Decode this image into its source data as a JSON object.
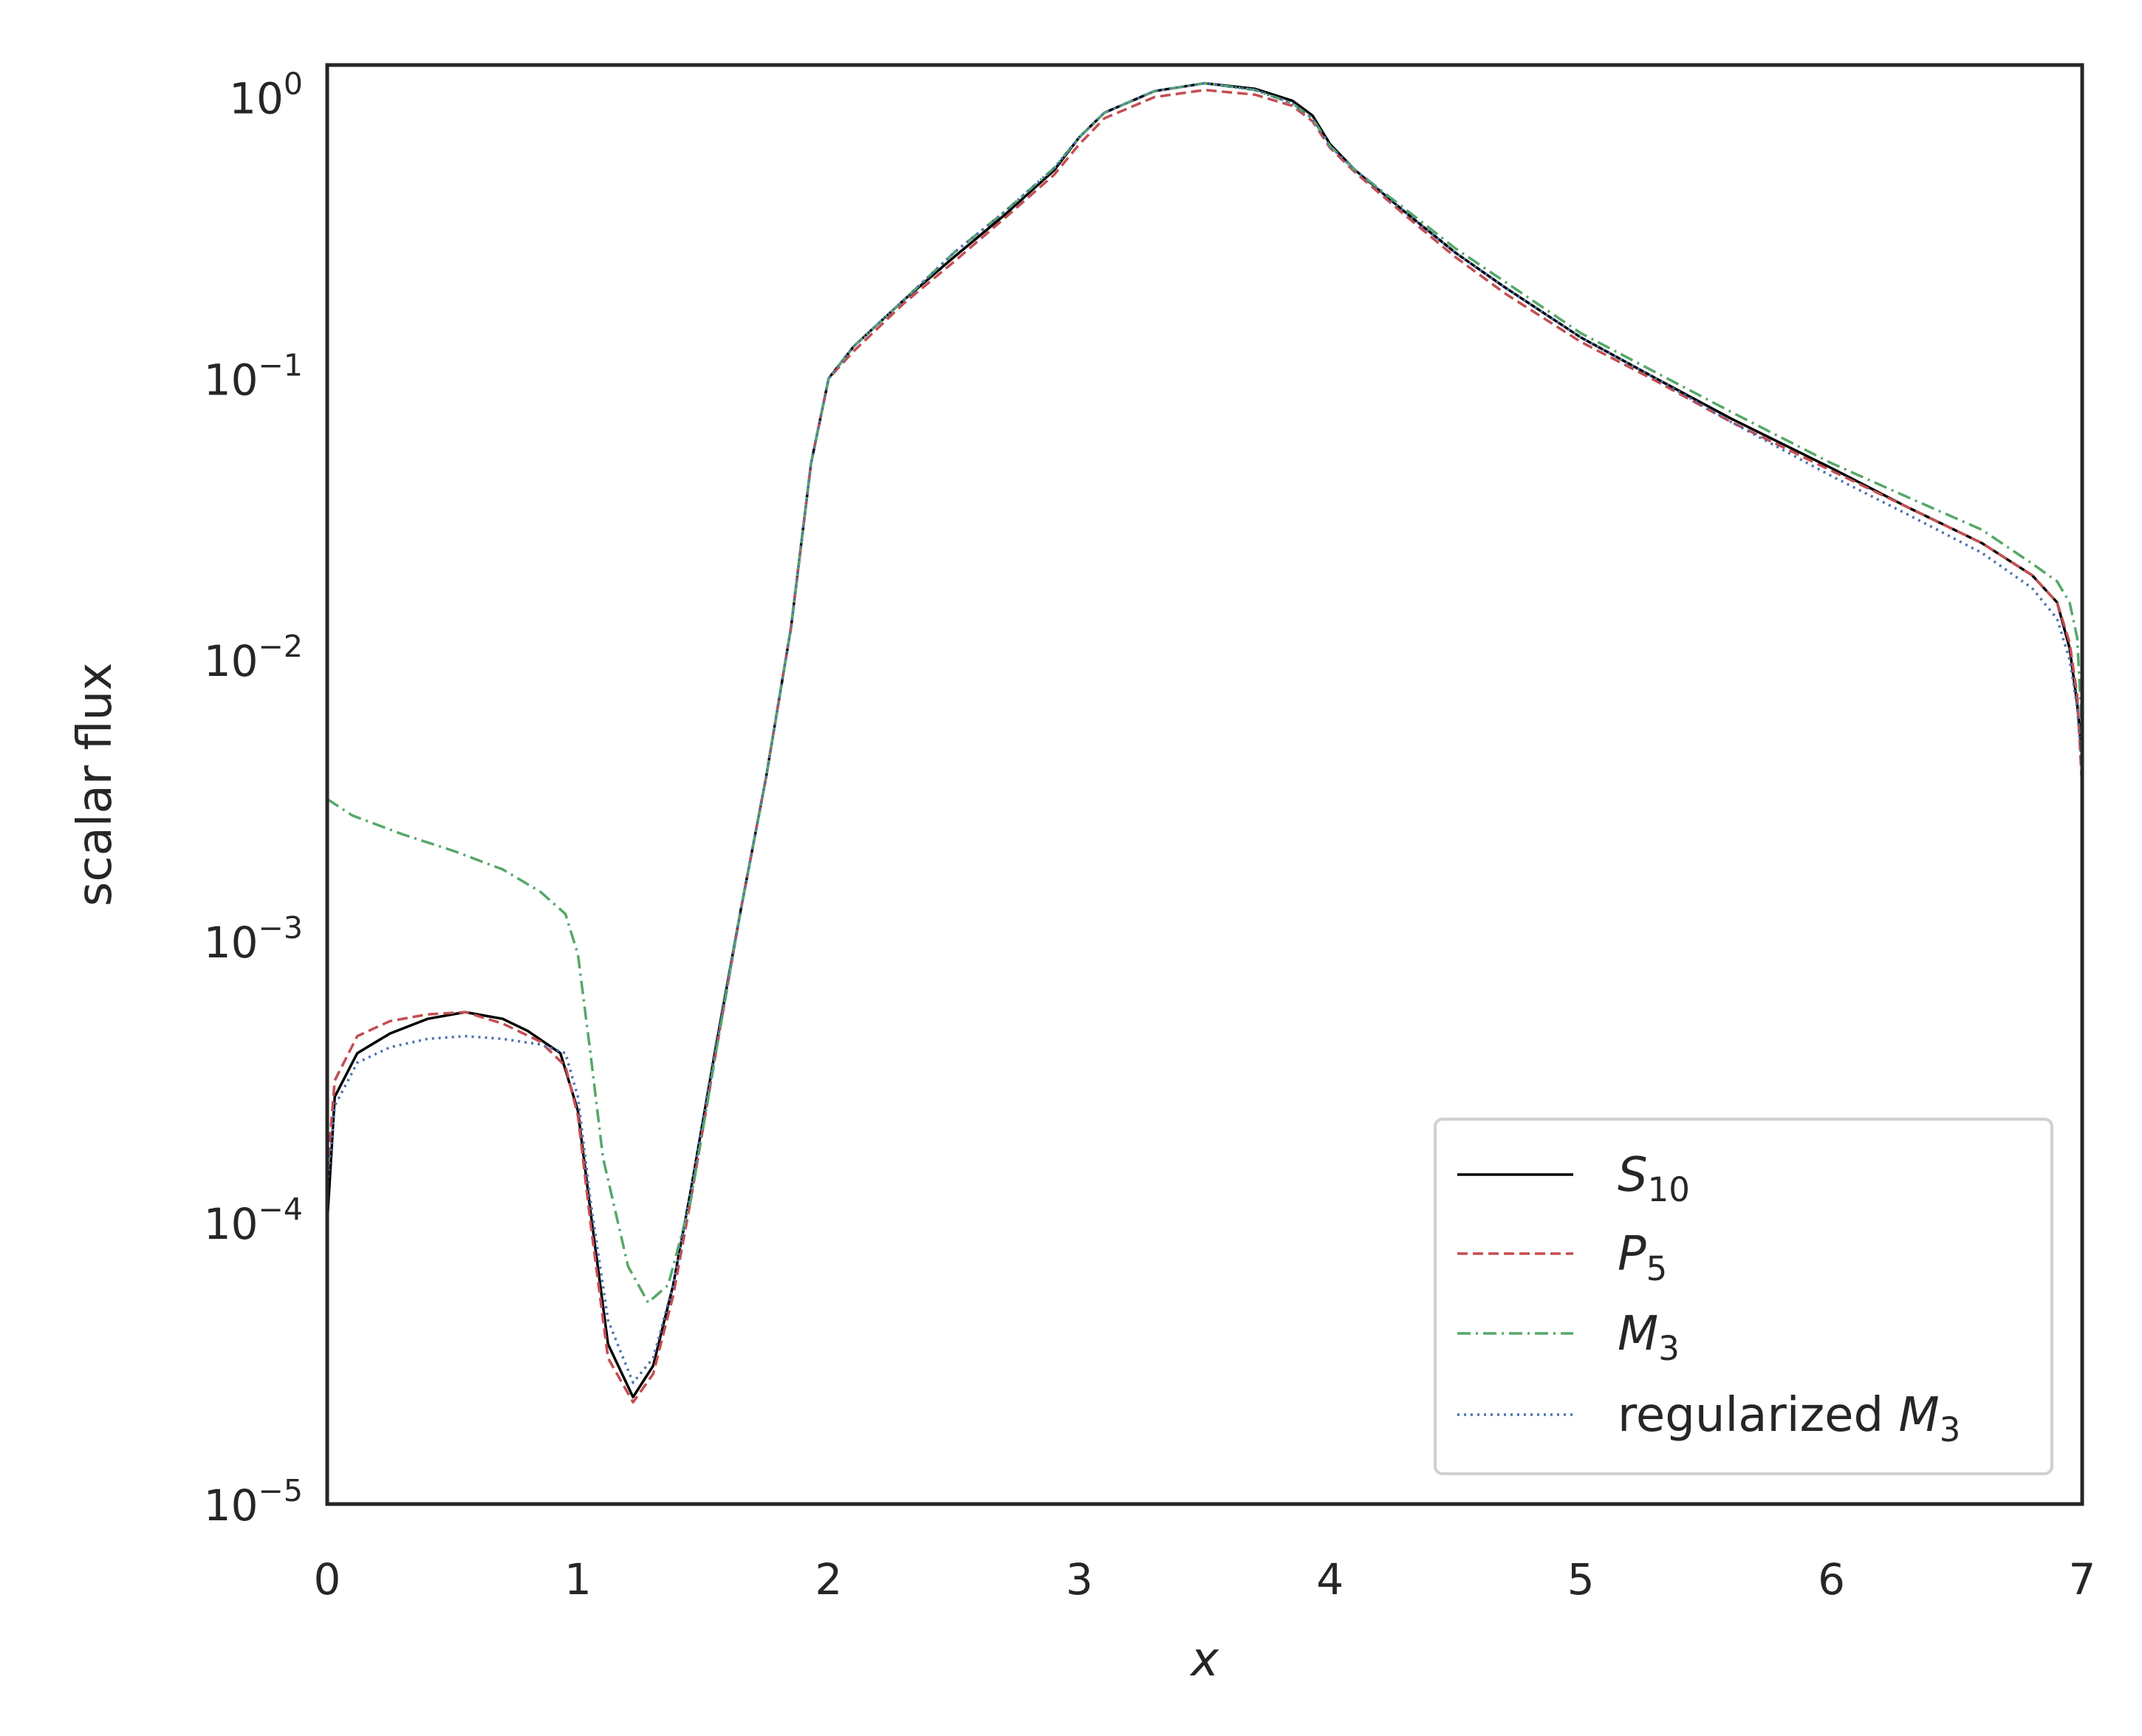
{
  "chart_data": {
    "type": "line",
    "title": "",
    "xlabel": "x",
    "ylabel": "scalar flux",
    "xlim": [
      0,
      7
    ],
    "ylim": [
      1e-05,
      1.3
    ],
    "yscale": "log",
    "grid": false,
    "legend_position": "lower-right",
    "x_ticks": [
      {
        "value": 0,
        "label": "0"
      },
      {
        "value": 1,
        "label": "1"
      },
      {
        "value": 2,
        "label": "2"
      },
      {
        "value": 3,
        "label": "3"
      },
      {
        "value": 4,
        "label": "4"
      },
      {
        "value": 5,
        "label": "5"
      },
      {
        "value": 6,
        "label": "6"
      },
      {
        "value": 7,
        "label": "7"
      }
    ],
    "y_ticks": [
      {
        "value": 1,
        "base": "10",
        "exp": "0"
      },
      {
        "value": 0.1,
        "base": "10",
        "exp": "−1"
      },
      {
        "value": 0.01,
        "base": "10",
        "exp": "−2"
      },
      {
        "value": 0.001,
        "base": "10",
        "exp": "−3"
      },
      {
        "value": 0.0001,
        "base": "10",
        "exp": "−4"
      },
      {
        "value": 1e-05,
        "base": "10",
        "exp": "−5"
      }
    ],
    "series": [
      {
        "name": "S10",
        "legend_main": "S",
        "legend_sub": "10",
        "legend_suffix": "",
        "color": "#000000",
        "dash": "",
        "width": 3.5,
        "points": [
          [
            0,
            0.0001
          ],
          [
            0.03,
            0.00028
          ],
          [
            0.12,
            0.0004
          ],
          [
            0.25,
            0.00047
          ],
          [
            0.4,
            0.00053
          ],
          [
            0.55,
            0.00056
          ],
          [
            0.7,
            0.00053
          ],
          [
            0.8,
            0.00048
          ],
          [
            0.93,
            0.0004
          ],
          [
            1.0,
            0.00025
          ],
          [
            1.05,
            0.00011
          ],
          [
            1.12,
            3.7e-05
          ],
          [
            1.22,
            2.4e-05
          ],
          [
            1.3,
            3.1e-05
          ],
          [
            1.38,
            6e-05
          ],
          [
            1.45,
            0.00013
          ],
          [
            1.55,
            0.00042
          ],
          [
            1.65,
            0.0013
          ],
          [
            1.75,
            0.0038
          ],
          [
            1.85,
            0.013
          ],
          [
            1.93,
            0.05
          ],
          [
            2.0,
            0.1
          ],
          [
            2.1,
            0.13
          ],
          [
            2.3,
            0.19
          ],
          [
            2.5,
            0.27
          ],
          [
            2.7,
            0.38
          ],
          [
            2.9,
            0.55
          ],
          [
            3.0,
            0.72
          ],
          [
            3.1,
            0.88
          ],
          [
            3.3,
            1.05
          ],
          [
            3.5,
            1.12
          ],
          [
            3.7,
            1.07
          ],
          [
            3.85,
            0.97
          ],
          [
            3.93,
            0.86
          ],
          [
            4.0,
            0.68
          ],
          [
            4.1,
            0.55
          ],
          [
            4.3,
            0.39
          ],
          [
            4.5,
            0.28
          ],
          [
            4.7,
            0.21
          ],
          [
            5.0,
            0.14
          ],
          [
            5.3,
            0.1
          ],
          [
            5.6,
            0.072
          ],
          [
            6.0,
            0.048
          ],
          [
            6.3,
            0.035
          ],
          [
            6.6,
            0.026
          ],
          [
            6.8,
            0.02
          ],
          [
            6.9,
            0.016
          ],
          [
            6.95,
            0.011
          ],
          [
            6.98,
            0.007
          ],
          [
            7.0,
            0.0045
          ]
        ]
      },
      {
        "name": "P5",
        "legend_main": "P",
        "legend_sub": "5",
        "legend_suffix": "",
        "color": "#c44e52",
        "dash": "14,7",
        "width": 3.5,
        "points": [
          [
            0,
            0.00015
          ],
          [
            0.03,
            0.00032
          ],
          [
            0.12,
            0.00046
          ],
          [
            0.25,
            0.00052
          ],
          [
            0.4,
            0.00055
          ],
          [
            0.55,
            0.00056
          ],
          [
            0.7,
            0.00051
          ],
          [
            0.85,
            0.00044
          ],
          [
            0.95,
            0.00036
          ],
          [
            1.0,
            0.00024
          ],
          [
            1.05,
            0.0001
          ],
          [
            1.12,
            3.3e-05
          ],
          [
            1.22,
            2.3e-05
          ],
          [
            1.3,
            2.9e-05
          ],
          [
            1.38,
            5.5e-05
          ],
          [
            1.45,
            0.00012
          ],
          [
            1.55,
            0.0004
          ],
          [
            1.65,
            0.0013
          ],
          [
            1.75,
            0.0038
          ],
          [
            1.85,
            0.013
          ],
          [
            1.93,
            0.05
          ],
          [
            2.0,
            0.1
          ],
          [
            2.1,
            0.125
          ],
          [
            2.3,
            0.185
          ],
          [
            2.5,
            0.26
          ],
          [
            2.7,
            0.37
          ],
          [
            2.9,
            0.53
          ],
          [
            3.0,
            0.68
          ],
          [
            3.1,
            0.84
          ],
          [
            3.3,
            1.0
          ],
          [
            3.5,
            1.06
          ],
          [
            3.7,
            1.02
          ],
          [
            3.85,
            0.93
          ],
          [
            3.93,
            0.82
          ],
          [
            4.0,
            0.66
          ],
          [
            4.1,
            0.54
          ],
          [
            4.3,
            0.38
          ],
          [
            4.5,
            0.27
          ],
          [
            4.7,
            0.2
          ],
          [
            5.0,
            0.135
          ],
          [
            5.3,
            0.098
          ],
          [
            5.6,
            0.07
          ],
          [
            6.0,
            0.047
          ],
          [
            6.3,
            0.035
          ],
          [
            6.6,
            0.026
          ],
          [
            6.8,
            0.02
          ],
          [
            6.9,
            0.016
          ],
          [
            6.95,
            0.0115
          ],
          [
            6.98,
            0.0075
          ],
          [
            7.0,
            0.0035
          ]
        ]
      },
      {
        "name": "M3",
        "legend_main": "M",
        "legend_sub": "3",
        "legend_suffix": "",
        "color": "#55a868",
        "dash": "18,7,3,7",
        "width": 3.5,
        "points": [
          [
            0,
            0.0032
          ],
          [
            0.1,
            0.0028
          ],
          [
            0.3,
            0.0024
          ],
          [
            0.5,
            0.0021
          ],
          [
            0.7,
            0.0018
          ],
          [
            0.85,
            0.0015
          ],
          [
            0.95,
            0.00125
          ],
          [
            1.0,
            0.0009
          ],
          [
            1.05,
            0.0004
          ],
          [
            1.1,
            0.00017
          ],
          [
            1.2,
            7e-05
          ],
          [
            1.28,
            5.2e-05
          ],
          [
            1.36,
            6e-05
          ],
          [
            1.45,
            0.00012
          ],
          [
            1.55,
            0.0004
          ],
          [
            1.65,
            0.0013
          ],
          [
            1.75,
            0.0038
          ],
          [
            1.85,
            0.013
          ],
          [
            1.93,
            0.05
          ],
          [
            2.0,
            0.1
          ],
          [
            2.1,
            0.13
          ],
          [
            2.3,
            0.19
          ],
          [
            2.5,
            0.28
          ],
          [
            2.7,
            0.39
          ],
          [
            2.9,
            0.56
          ],
          [
            3.0,
            0.72
          ],
          [
            3.1,
            0.88
          ],
          [
            3.3,
            1.05
          ],
          [
            3.5,
            1.12
          ],
          [
            3.7,
            1.06
          ],
          [
            3.85,
            0.95
          ],
          [
            3.93,
            0.84
          ],
          [
            4.0,
            0.67
          ],
          [
            4.1,
            0.55
          ],
          [
            4.3,
            0.4
          ],
          [
            4.5,
            0.29
          ],
          [
            4.7,
            0.22
          ],
          [
            5.0,
            0.145
          ],
          [
            5.3,
            0.105
          ],
          [
            5.6,
            0.076
          ],
          [
            6.0,
            0.05
          ],
          [
            6.3,
            0.038
          ],
          [
            6.6,
            0.029
          ],
          [
            6.8,
            0.022
          ],
          [
            6.9,
            0.019
          ],
          [
            6.95,
            0.016
          ],
          [
            6.98,
            0.012
          ],
          [
            7.0,
            0.0055
          ]
        ]
      },
      {
        "name": "regularized M3",
        "legend_main": "M",
        "legend_sub": "3",
        "legend_suffix": "regularized ",
        "color": "#4c72b0",
        "dash": "3,6",
        "width": 3.5,
        "points": [
          [
            0,
            0.00013
          ],
          [
            0.03,
            0.00026
          ],
          [
            0.12,
            0.00037
          ],
          [
            0.25,
            0.00042
          ],
          [
            0.4,
            0.00045
          ],
          [
            0.55,
            0.00046
          ],
          [
            0.7,
            0.00045
          ],
          [
            0.85,
            0.00043
          ],
          [
            0.95,
            0.0004
          ],
          [
            1.0,
            0.00028
          ],
          [
            1.05,
            0.00012
          ],
          [
            1.12,
            4.5e-05
          ],
          [
            1.22,
            2.7e-05
          ],
          [
            1.3,
            3.3e-05
          ],
          [
            1.38,
            6e-05
          ],
          [
            1.45,
            0.00013
          ],
          [
            1.55,
            0.00043
          ],
          [
            1.65,
            0.0013
          ],
          [
            1.75,
            0.0038
          ],
          [
            1.85,
            0.013
          ],
          [
            1.93,
            0.05
          ],
          [
            2.0,
            0.1
          ],
          [
            2.1,
            0.13
          ],
          [
            2.3,
            0.19
          ],
          [
            2.5,
            0.28
          ],
          [
            2.7,
            0.39
          ],
          [
            2.9,
            0.56
          ],
          [
            3.0,
            0.72
          ],
          [
            3.1,
            0.88
          ],
          [
            3.3,
            1.05
          ],
          [
            3.5,
            1.12
          ],
          [
            3.7,
            1.06
          ],
          [
            3.85,
            0.95
          ],
          [
            3.93,
            0.84
          ],
          [
            4.0,
            0.67
          ],
          [
            4.1,
            0.55
          ],
          [
            4.3,
            0.39
          ],
          [
            4.5,
            0.28
          ],
          [
            4.7,
            0.21
          ],
          [
            5.0,
            0.14
          ],
          [
            5.3,
            0.1
          ],
          [
            5.6,
            0.07
          ],
          [
            6.0,
            0.045
          ],
          [
            6.3,
            0.033
          ],
          [
            6.6,
            0.024
          ],
          [
            6.8,
            0.018
          ],
          [
            6.9,
            0.014
          ],
          [
            6.95,
            0.01
          ],
          [
            6.98,
            0.0068
          ],
          [
            7.0,
            0.004
          ]
        ]
      }
    ]
  }
}
